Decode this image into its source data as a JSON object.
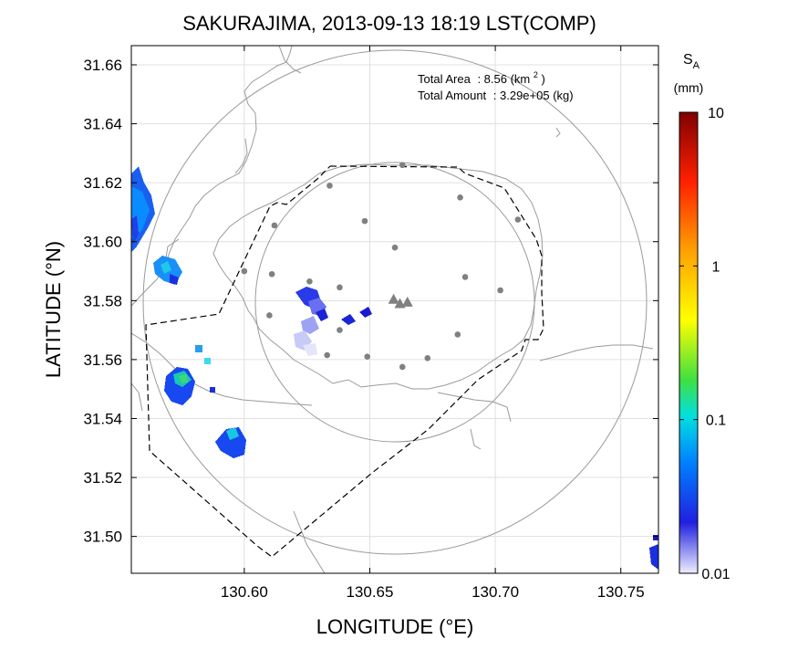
{
  "title": "SAKURAJIMA, 2013-09-13 18:19 LST(COMP)",
  "annotation": {
    "area_label": "Total Area",
    "area_value": ": 8.56 (km",
    "area_sup": "2",
    "area_close": ")",
    "amount_label": "Total Amount",
    "amount_value": ": 3.29e+05 (kg)"
  },
  "colorbar": {
    "label_main": "S",
    "label_sub": "A",
    "unit": "(mm)",
    "ticks": [
      "10",
      "1",
      "0.1",
      "0.01"
    ],
    "tick_values": [
      10,
      1,
      0.1,
      0.01
    ],
    "scale": "log",
    "colors": [
      "#eeeeff",
      "#2020e0",
      "#0080ff",
      "#00e0e0",
      "#40e040",
      "#ffff00",
      "#ffa000",
      "#ff2000",
      "#800000"
    ]
  },
  "map": {
    "xlabel": "LONGITUDE (°E)",
    "ylabel": "LATITUDE (°N)",
    "xlim": [
      130.555,
      130.765
    ],
    "ylim": [
      31.4875,
      31.6665
    ],
    "xticks": [
      "130.60",
      "130.65",
      "130.70",
      "130.75"
    ],
    "xtick_values": [
      130.6,
      130.65,
      130.7,
      130.75
    ],
    "yticks": [
      "31.66",
      "31.64",
      "31.62",
      "31.60",
      "31.58",
      "31.56",
      "31.54",
      "31.52",
      "31.50"
    ],
    "ytick_values": [
      31.66,
      31.64,
      31.62,
      31.6,
      31.58,
      31.56,
      31.54,
      31.52,
      31.5
    ],
    "grid": true,
    "vents": [
      [
        130.6595,
        31.5805
      ],
      [
        130.662,
        31.579
      ],
      [
        130.665,
        31.5795
      ]
    ],
    "stations": [
      [
        130.663,
        31.626
      ],
      [
        130.634,
        31.619
      ],
      [
        130.686,
        31.615
      ],
      [
        130.648,
        31.607
      ],
      [
        130.612,
        31.6055
      ],
      [
        130.709,
        31.6075
      ],
      [
        130.66,
        31.598
      ],
      [
        130.6,
        31.59
      ],
      [
        130.611,
        31.589
      ],
      [
        130.688,
        31.588
      ],
      [
        130.626,
        31.5865
      ],
      [
        130.638,
        31.5845
      ],
      [
        130.702,
        31.5835
      ],
      [
        130.61,
        31.575
      ],
      [
        130.638,
        31.57
      ],
      [
        130.685,
        31.5685
      ],
      [
        130.633,
        31.5615
      ],
      [
        130.649,
        31.561
      ],
      [
        130.673,
        31.5605
      ],
      [
        130.663,
        31.5575
      ]
    ],
    "outer_circle": {
      "center": [
        130.6595,
        31.5775
      ],
      "radius_deg": 0.1
    },
    "inner_circle": {
      "center": [
        130.6595,
        31.5775
      ],
      "radius_deg": 0.0565
    }
  }
}
